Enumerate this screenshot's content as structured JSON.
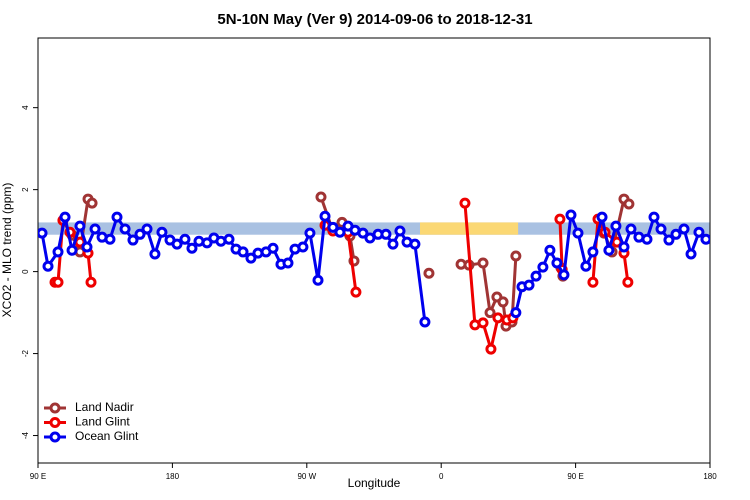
{
  "chart_data": {
    "type": "line",
    "title": "5N-10N May (Ver 9)   2014-09-06 to 2018-12-31",
    "xlabel": "Longitude",
    "ylabel": "XCO2 - MLO trend (ppm)",
    "xlim": [
      90,
      540
    ],
    "ylim": [
      -4.67,
      5.7
    ],
    "xticks": [
      {
        "value": 90,
        "label": "90 E"
      },
      {
        "value": 180,
        "label": "180"
      },
      {
        "value": 270,
        "label": "90 W"
      },
      {
        "value": 360,
        "label": "0"
      },
      {
        "value": 450,
        "label": "90 E"
      },
      {
        "value": 540,
        "label": "180"
      }
    ],
    "yticks": [
      -4,
      -2,
      0,
      2,
      4
    ],
    "legend": "bottom-left",
    "bands": [
      {
        "ylim": [
          0.9,
          1.2
        ],
        "color": "#a9c1e2"
      },
      {
        "xlim": [
          345.8,
          411.5
        ],
        "ylim": [
          0.9,
          1.2
        ],
        "color": "#fbd874"
      }
    ],
    "series": [
      {
        "name": "Land Nadir",
        "color": "#a03434",
        "x": [
          112.8,
          118.1,
          123.5,
          126.2,
          200,
          279.5,
          286.8,
          293.6,
          298.9,
          301.6,
          330,
          351.8,
          365,
          373.3,
          378.6,
          388,
          392.7,
          397.3,
          401.4,
          403.4,
          407.4,
          410,
          425,
          440.2,
          441.5,
          455,
          469,
          474.4,
          482.4,
          485.7
        ],
        "values": [
          0.89,
          0.48,
          1.77,
          1.67,
          null,
          1.82,
          1.06,
          1.2,
          0.87,
          0.26,
          null,
          -0.04,
          null,
          0.18,
          0.16,
          0.21,
          -1.0,
          -0.62,
          -0.74,
          -1.33,
          -1.23,
          0.38,
          null,
          0.09,
          -0.11,
          null,
          0.94,
          0.48,
          1.77,
          1.65
        ]
      },
      {
        "name": "Land Glint",
        "color": "#ee0000",
        "x": [
          101.4,
          103.4,
          106.7,
          111.4,
          118.1,
          123.5,
          125.5,
          200,
          282.2,
          287.5,
          297.6,
          302.9,
          340,
          375.9,
          382.6,
          388,
          393.3,
          398,
          404,
          408,
          425,
          439.5,
          441,
          459.6,
          461.6,
          465,
          469.7,
          477.7,
          482.4,
          485
        ],
        "values": [
          -0.26,
          -0.26,
          1.25,
          0.96,
          0.72,
          0.45,
          -0.26,
          null,
          1.13,
          0.99,
          0.96,
          -0.5,
          null,
          1.67,
          -1.3,
          -1.25,
          -1.89,
          -1.13,
          -1.18,
          -1.13,
          null,
          1.28,
          0.05,
          null,
          -0.26,
          1.28,
          0.96,
          0.72,
          0.45,
          -0.26
        ]
      },
      {
        "name": "Ocean Glint",
        "color": "#0000ee",
        "x": [
          92.7,
          96.7,
          103.4,
          108.1,
          112.8,
          118.1,
          122.8,
          128.2,
          132.9,
          138.2,
          142.9,
          148.3,
          153.6,
          158.3,
          163,
          168.3,
          173,
          178.4,
          183.1,
          188.4,
          193.1,
          197.8,
          203.2,
          207.8,
          212.5,
          217.9,
          222.6,
          227.3,
          232.6,
          237.3,
          242.7,
          247.4,
          252.7,
          257.4,
          262.1,
          267.4,
          272.1,
          277.5,
          282.2,
          287.5,
          292.2,
          297.6,
          302.3,
          307.6,
          312.3,
          317.7,
          323,
          327.7,
          332.4,
          337.1,
          342.4,
          349.1,
          380,
          410,
          414.1,
          418.8,
          423.5,
          428.1,
          432.8,
          437.5,
          442.2,
          446.9,
          451.6,
          456.9,
          461.6,
          467.7,
          472.3,
          477,
          482.4,
          487.1,
          492.4,
          497.8,
          502.5,
          507.2,
          512.5,
          517.2,
          522.6,
          527.3,
          532.6,
          537.3
        ],
        "values": [
          0.94,
          0.13,
          0.48,
          1.33,
          0.52,
          1.11,
          0.6,
          1.04,
          0.84,
          0.79,
          1.33,
          1.04,
          0.77,
          0.91,
          1.04,
          0.43,
          0.96,
          0.77,
          0.67,
          0.79,
          0.57,
          0.74,
          0.7,
          0.82,
          0.74,
          0.79,
          0.55,
          0.48,
          0.33,
          0.45,
          0.48,
          0.57,
          0.18,
          0.21,
          0.55,
          0.6,
          0.94,
          -0.21,
          1.35,
          1.08,
          0.96,
          1.11,
          1.01,
          0.94,
          0.82,
          0.91,
          0.91,
          0.67,
          0.99,
          0.72,
          0.67,
          -1.23,
          null,
          -1.0,
          -0.37,
          -0.33,
          -0.11,
          0.11,
          0.52,
          0.21,
          -0.08,
          1.38,
          0.94,
          0.13,
          0.48,
          1.33,
          0.52,
          1.11,
          0.6,
          1.04,
          0.84,
          0.79,
          1.33,
          1.04,
          0.77,
          0.91,
          1.04,
          0.43,
          0.96,
          0.79
        ]
      }
    ]
  }
}
